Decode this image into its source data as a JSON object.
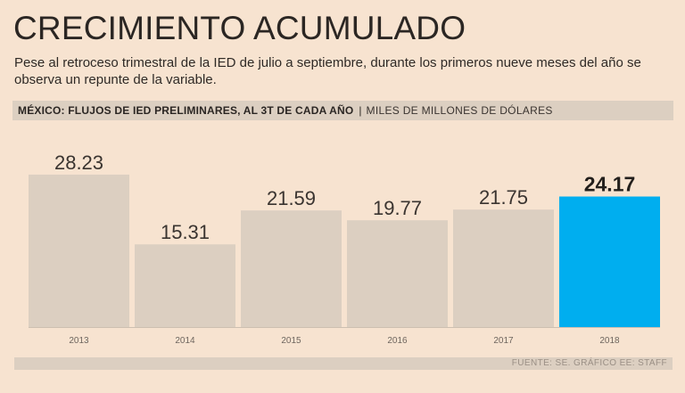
{
  "header": {
    "title": "CRECIMIENTO ACUMULADO",
    "subtitle": "Pese al retroceso trimestral de la IED de julio a septiembre, durante los primeros nueve meses del año se observa un repunte de la variable.",
    "chart_heading": "MÉXICO: FLUJOS DE IED PRELIMINARES, AL 3T DE CADA AÑO",
    "separator": "|",
    "units": "MILES DE MILLONES DE DÓLARES"
  },
  "footer": {
    "source": "FUENTE: SE. GRÁFICO EE: STAFF"
  },
  "colors": {
    "background": "#f7e3d0",
    "bar": "#dccfc1",
    "highlight_bar": "#00aeef",
    "label": "#3a3430"
  },
  "chart_data": {
    "type": "bar",
    "title": "MÉXICO: FLUJOS DE IED PRELIMINARES, AL 3T DE CADA AÑO",
    "xlabel": "",
    "ylabel": "MILES DE MILLONES DE DÓLARES",
    "categories": [
      "2013",
      "2014",
      "2015",
      "2016",
      "2017",
      "2018"
    ],
    "values": [
      28.23,
      15.31,
      21.59,
      19.77,
      21.75,
      24.17
    ],
    "value_labels": [
      "28.23",
      "15.31",
      "21.59",
      "19.77",
      "21.75",
      "24.17"
    ],
    "highlight_index": 5,
    "ylim": [
      0,
      35
    ],
    "grid": false,
    "legend": "none"
  }
}
